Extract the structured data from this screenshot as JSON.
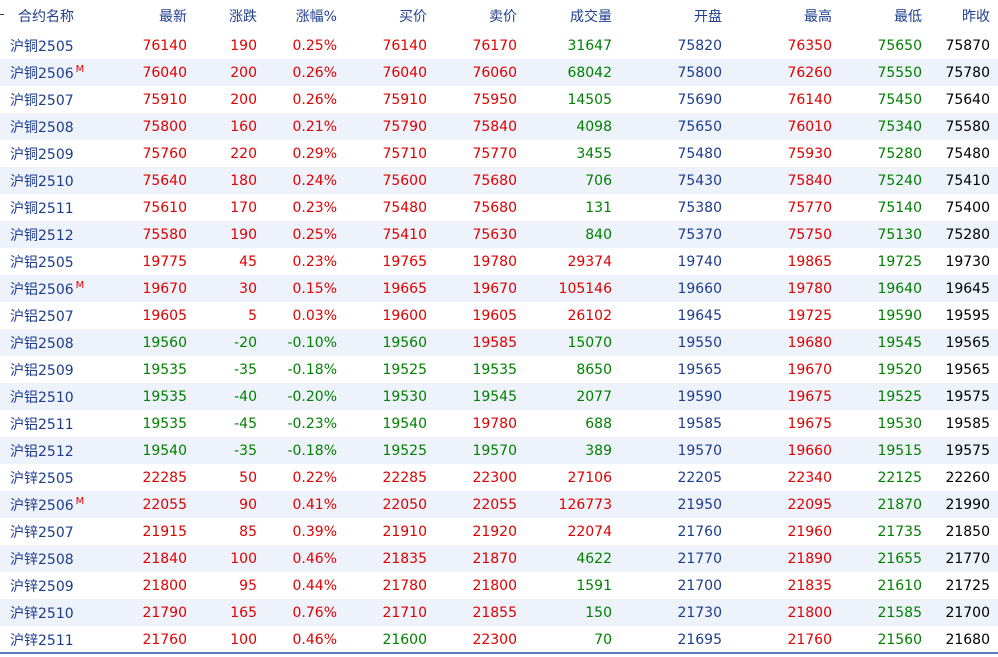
{
  "headers": [
    "合约名称",
    "最新",
    "涨跌",
    "涨幅%",
    "买价",
    "卖价",
    "成交量",
    "开盘",
    "最高",
    "最低",
    "昨收"
  ],
  "colors": {
    "up": "#e00000",
    "down": "#008000",
    "neutral": "#000000",
    "volume": "#1c3c8c"
  },
  "rows": [
    [
      "沪铜2505",
      "",
      "76140",
      "190",
      "0.25%",
      "76140",
      "76170",
      "31647",
      "75820",
      "76350",
      "75650",
      "75870"
    ],
    [
      "沪铜2506",
      "M",
      "76040",
      "200",
      "0.26%",
      "76040",
      "76060",
      "68042",
      "75800",
      "76260",
      "75550",
      "75780"
    ],
    [
      "沪铜2507",
      "",
      "75910",
      "200",
      "0.26%",
      "75910",
      "75950",
      "14505",
      "75690",
      "76140",
      "75450",
      "75640"
    ],
    [
      "沪铜2508",
      "",
      "75800",
      "160",
      "0.21%",
      "75790",
      "75840",
      "4098",
      "75650",
      "76010",
      "75340",
      "75580"
    ],
    [
      "沪铜2509",
      "",
      "75760",
      "220",
      "0.29%",
      "75710",
      "75770",
      "3455",
      "75480",
      "75930",
      "75280",
      "75480"
    ],
    [
      "沪铜2510",
      "",
      "75640",
      "180",
      "0.24%",
      "75600",
      "75680",
      "706",
      "75430",
      "75840",
      "75240",
      "75410"
    ],
    [
      "沪铜2511",
      "",
      "75610",
      "170",
      "0.23%",
      "75480",
      "75680",
      "131",
      "75380",
      "75770",
      "75140",
      "75400"
    ],
    [
      "沪铜2512",
      "",
      "75580",
      "190",
      "0.25%",
      "75410",
      "75630",
      "840",
      "75370",
      "75750",
      "75130",
      "75280"
    ],
    [
      "沪铝2505",
      "",
      "19775",
      "45",
      "0.23%",
      "19765",
      "19780",
      "29374",
      "19740",
      "19865",
      "19725",
      "19730"
    ],
    [
      "沪铝2506",
      "M",
      "19670",
      "30",
      "0.15%",
      "19665",
      "19670",
      "105146",
      "19660",
      "19780",
      "19640",
      "19645"
    ],
    [
      "沪铝2507",
      "",
      "19605",
      "5",
      "0.03%",
      "19600",
      "19605",
      "26102",
      "19645",
      "19725",
      "19590",
      "19595"
    ],
    [
      "沪铝2508",
      "",
      "19560",
      "-20",
      "-0.10%",
      "19560",
      "19585",
      "15070",
      "19550",
      "19680",
      "19545",
      "19565"
    ],
    [
      "沪铝2509",
      "",
      "19535",
      "-35",
      "-0.18%",
      "19525",
      "19535",
      "8650",
      "19565",
      "19670",
      "19520",
      "19565"
    ],
    [
      "沪铝2510",
      "",
      "19535",
      "-40",
      "-0.20%",
      "19530",
      "19545",
      "2077",
      "19590",
      "19675",
      "19525",
      "19575"
    ],
    [
      "沪铝2511",
      "",
      "19535",
      "-45",
      "-0.23%",
      "19540",
      "19780",
      "688",
      "19585",
      "19675",
      "19530",
      "19585"
    ],
    [
      "沪铝2512",
      "",
      "19540",
      "-35",
      "-0.18%",
      "19525",
      "19570",
      "389",
      "19570",
      "19660",
      "19515",
      "19575"
    ],
    [
      "沪锌2505",
      "",
      "22285",
      "50",
      "0.22%",
      "22285",
      "22300",
      "27106",
      "22205",
      "22340",
      "22125",
      "22260"
    ],
    [
      "沪锌2506",
      "M",
      "22055",
      "90",
      "0.41%",
      "22050",
      "22055",
      "126773",
      "21950",
      "22095",
      "21870",
      "21990"
    ],
    [
      "沪锌2507",
      "",
      "21915",
      "85",
      "0.39%",
      "21910",
      "21920",
      "22074",
      "21760",
      "21960",
      "21735",
      "21850"
    ],
    [
      "沪锌2508",
      "",
      "21840",
      "100",
      "0.46%",
      "21835",
      "21870",
      "4622",
      "21770",
      "21890",
      "21655",
      "21770"
    ],
    [
      "沪锌2509",
      "",
      "21800",
      "95",
      "0.44%",
      "21780",
      "21800",
      "1591",
      "21700",
      "21835",
      "21610",
      "21725"
    ],
    [
      "沪锌2510",
      "",
      "21790",
      "165",
      "0.76%",
      "21710",
      "21855",
      "150",
      "21730",
      "21800",
      "21585",
      "21700"
    ],
    [
      "沪锌2511",
      "",
      "21760",
      "100",
      "0.46%",
      "21600",
      "22300",
      "70",
      "21695",
      "21760",
      "21560",
      "21680"
    ]
  ]
}
